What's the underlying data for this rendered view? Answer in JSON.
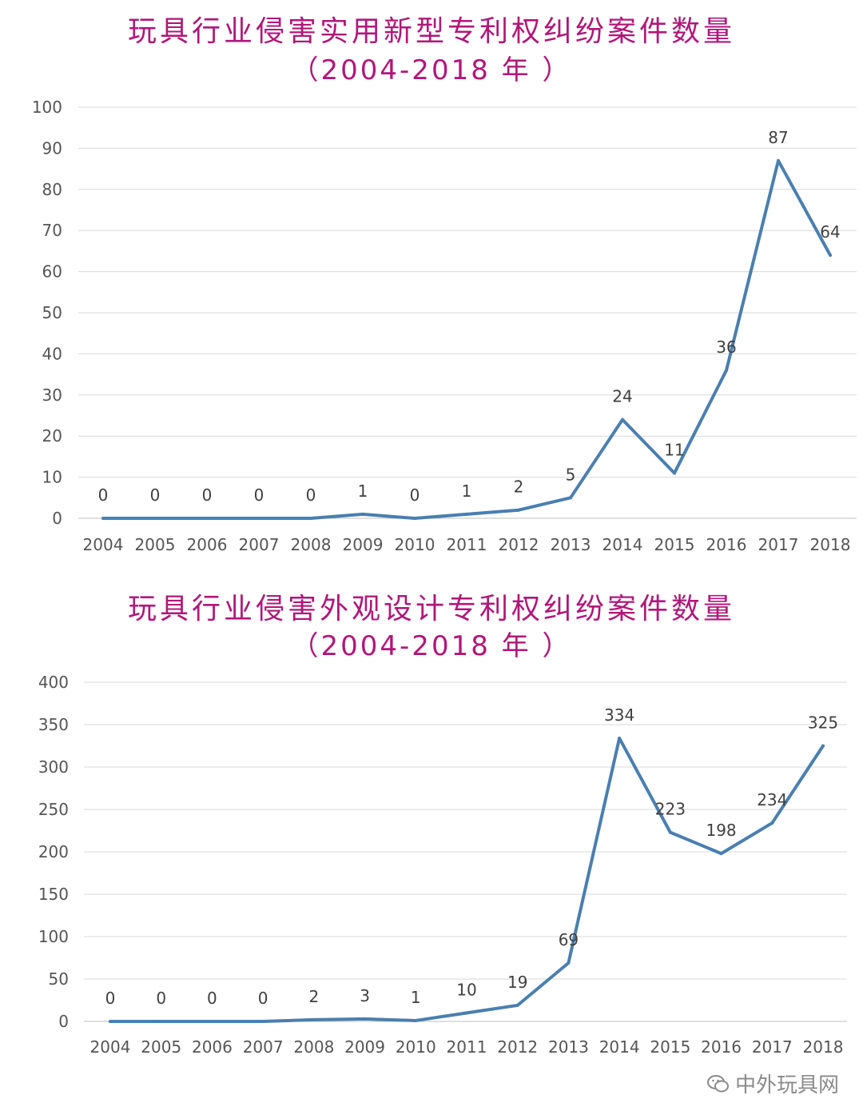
{
  "colors": {
    "title": "#b0177a",
    "line": "#4a7fb0",
    "grid": "#d9d9d9",
    "text": "#555555"
  },
  "charts": [
    {
      "title": "玩具行业侵害实用新型专利权纠纷案件数量",
      "subtitle": "（2004-2018 年 ）",
      "chart_data": {
        "type": "line",
        "categories": [
          "2004",
          "2005",
          "2006",
          "2007",
          "2008",
          "2009",
          "2010",
          "2011",
          "2012",
          "2013",
          "2014",
          "2015",
          "2016",
          "2017",
          "2018"
        ],
        "values": [
          0,
          0,
          0,
          0,
          0,
          1,
          0,
          1,
          2,
          5,
          24,
          11,
          36,
          87,
          64
        ],
        "ylim": [
          0,
          100
        ],
        "yticks": [
          0,
          10,
          20,
          30,
          40,
          50,
          60,
          70,
          80,
          90,
          100
        ],
        "grid": true,
        "legend": "none"
      }
    },
    {
      "title": "玩具行业侵害外观设计专利权纠纷案件数量",
      "subtitle": "（2004-2018 年 ）",
      "chart_data": {
        "type": "line",
        "categories": [
          "2004",
          "2005",
          "2006",
          "2007",
          "2008",
          "2009",
          "2010",
          "2011",
          "2012",
          "2013",
          "2014",
          "2015",
          "2016",
          "2017",
          "2018"
        ],
        "values": [
          0,
          0,
          0,
          0,
          2,
          3,
          1,
          10,
          19,
          69,
          334,
          223,
          198,
          234,
          325
        ],
        "ylim": [
          0,
          400
        ],
        "yticks": [
          0,
          50,
          100,
          150,
          200,
          250,
          300,
          350,
          400
        ],
        "grid": true,
        "legend": "none"
      }
    }
  ],
  "watermark": {
    "text": "中外玩具网",
    "icon": "wechat-icon"
  }
}
